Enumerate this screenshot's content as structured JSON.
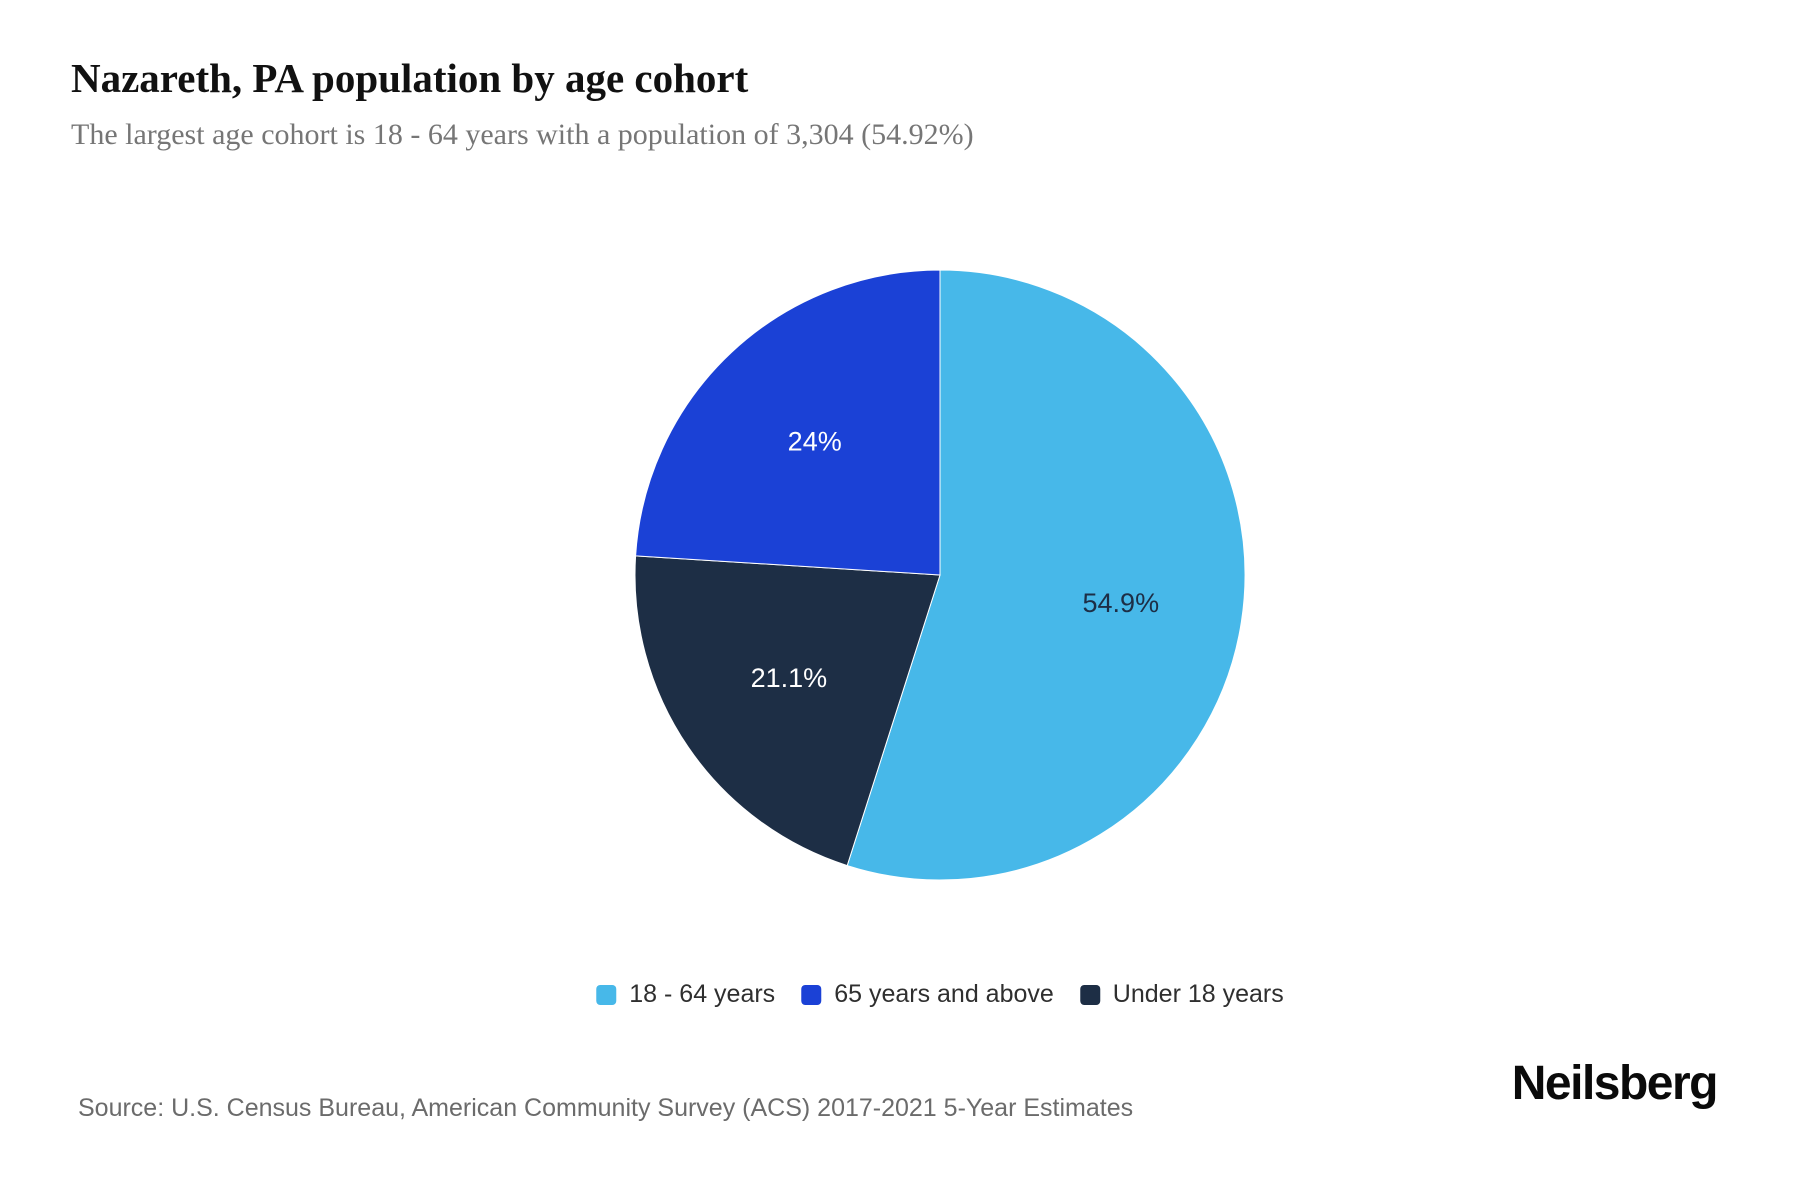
{
  "header": {
    "title": "Nazareth, PA population by age cohort",
    "subtitle": "The largest age cohort is 18 - 64 years with a population of 3,304 (54.92%)"
  },
  "chart_data": {
    "type": "pie",
    "title": "Nazareth, PA population by age cohort",
    "unit": "percent",
    "start_angle_deg": 0,
    "direction": "clockwise",
    "slices": [
      {
        "name": "18 - 64 years",
        "value": 54.92,
        "display_label": "54.9%",
        "color": "#47b8e9",
        "label_color": "#1d2e46",
        "population": "3,304"
      },
      {
        "name": "Under 18 years",
        "value": 21.08,
        "display_label": "21.1%",
        "color": "#1d2e45",
        "label_color": "#ffffff"
      },
      {
        "name": "65 years and above",
        "value": 24.0,
        "display_label": "24%",
        "color": "#1b41d6",
        "label_color": "#ffffff"
      }
    ],
    "legend_position": "bottom",
    "legend": [
      "18 - 64 years",
      "65 years and above",
      "Under 18 years"
    ]
  },
  "footer": {
    "source": "Source: U.S. Census Bureau, American Community Survey (ACS) 2017-2021 5-Year Estimates",
    "brand": "Neilsberg"
  }
}
